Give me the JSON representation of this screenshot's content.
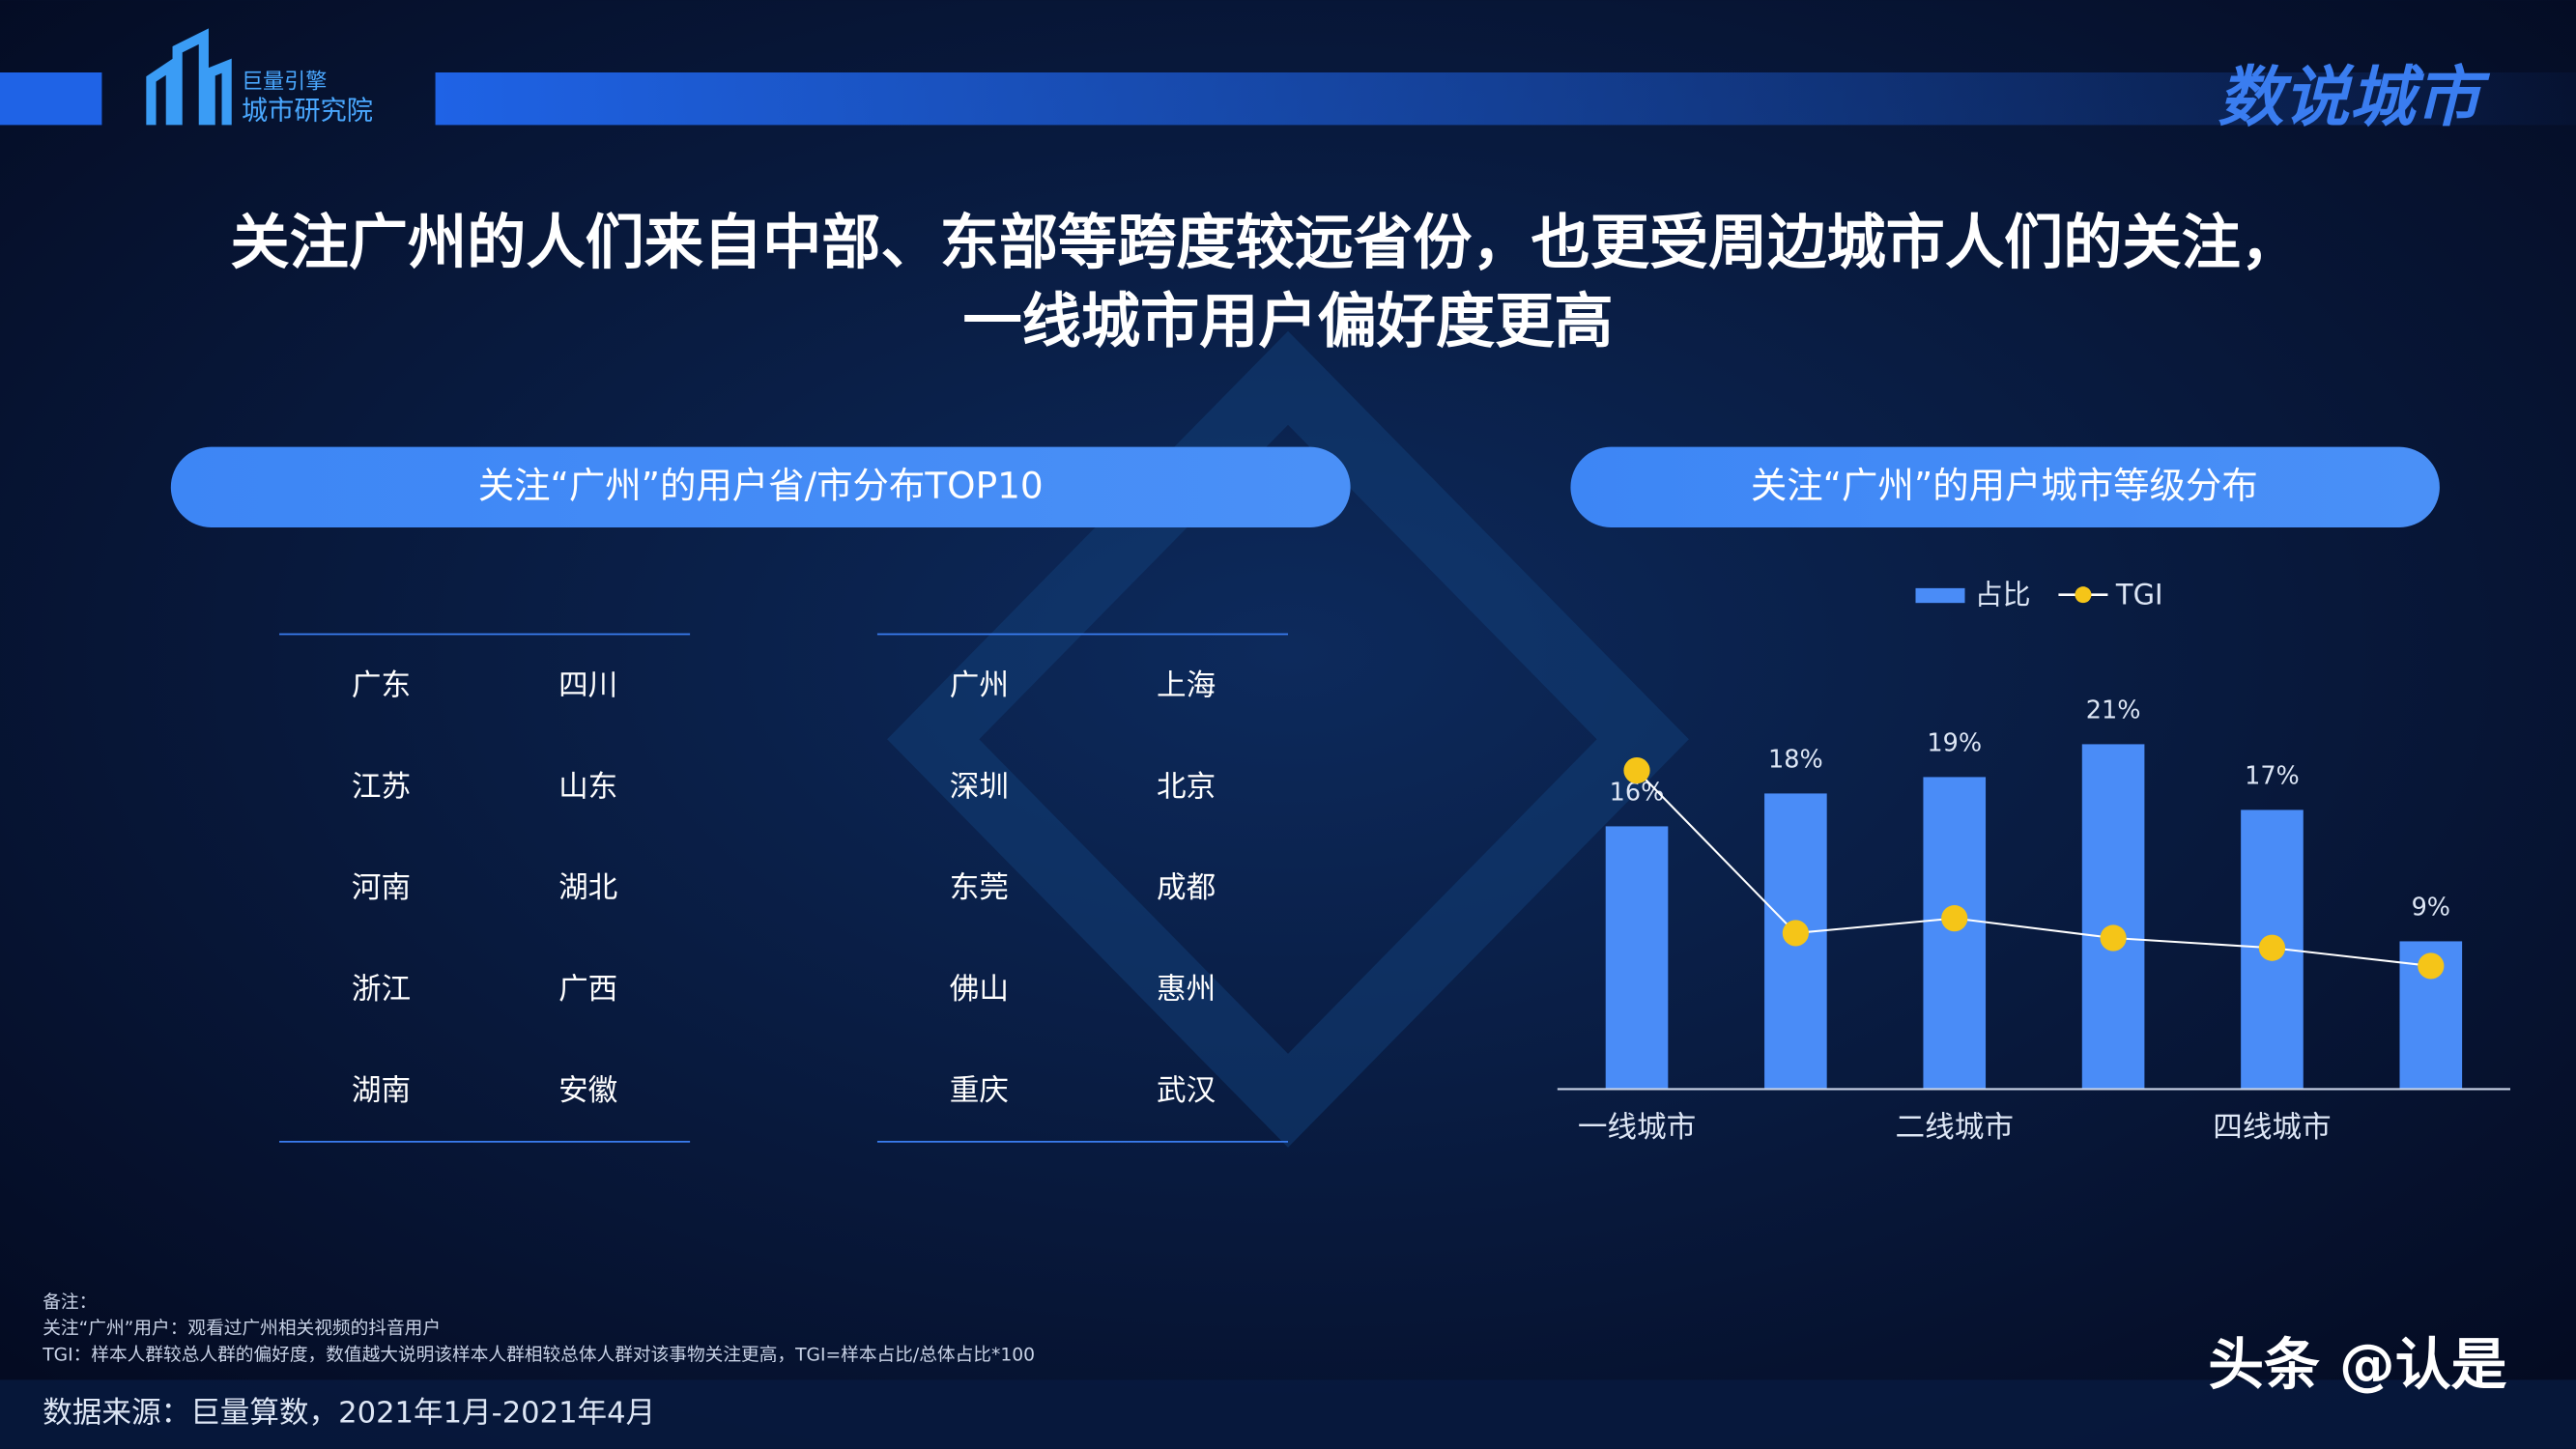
{
  "header": {
    "logo_line1": "巨量引擎",
    "logo_line2": "城市研究院",
    "brand": "数说城市"
  },
  "title": [
    "关注广州的人们来自中部、东部等跨度较远省份，也更受周边城市人们的关注，",
    "一线城市用户偏好度更高"
  ],
  "left_panel": {
    "heading": "关注“广州”的用户省/市分布TOP10",
    "provinces": [
      [
        "广东",
        "四川"
      ],
      [
        "江苏",
        "山东"
      ],
      [
        "河南",
        "湖北"
      ],
      [
        "浙江",
        "广西"
      ],
      [
        "湖南",
        "安徽"
      ]
    ],
    "cities": [
      [
        "广州",
        "上海"
      ],
      [
        "深圳",
        "北京"
      ],
      [
        "东莞",
        "成都"
      ],
      [
        "佛山",
        "惠州"
      ],
      [
        "重庆",
        "武汉"
      ]
    ]
  },
  "chart_data": {
    "type": "bar",
    "title": "关注“广州”的用户城市等级分布",
    "categories": [
      "一线城市",
      null,
      "二线城市",
      null,
      "四线城市",
      null
    ],
    "series": [
      {
        "name": "占比",
        "type": "bar",
        "color": "#4a8cf7",
        "values": [
          16,
          18,
          19,
          21,
          17,
          9
        ],
        "value_labels": [
          "16%",
          "18%",
          "19%",
          "21%",
          "17%",
          "9%"
        ]
      },
      {
        "name": "TGI",
        "type": "line",
        "color": "#f5c518",
        "axis": "y2",
        "values": [
          194,
          95,
          104,
          92,
          86,
          75
        ]
      }
    ],
    "ylim": [
      0,
      25
    ],
    "y2lim": [
      0,
      250
    ],
    "legend": "top"
  },
  "notes": [
    "备注：",
    "关注“广州”用户：观看过广州相关视频的抖音用户",
    "TGI：样本人群较总人群的偏好度，数值越大说明该样本人群相较总体人群对该事物关注更高，TGI=样本占比/总体占比*100"
  ],
  "source": "数据来源：巨量算数，2021年1月-2021年4月",
  "watermark": "头条 @认是"
}
